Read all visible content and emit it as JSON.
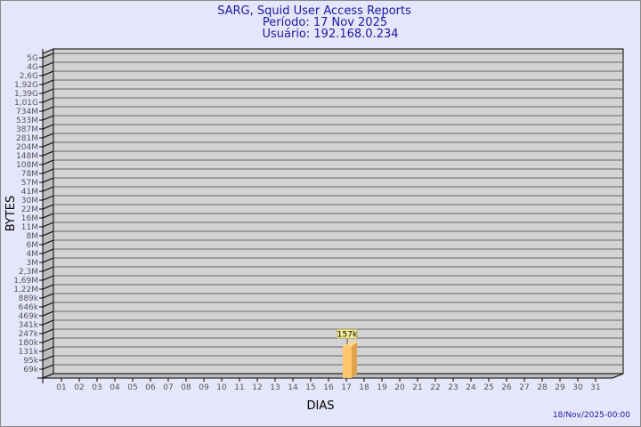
{
  "chart_data": {
    "type": "bar",
    "title": "SARG, Squid User Access Reports",
    "subtitle_period": "Período: 17 Nov 2025",
    "subtitle_user": "Usuário: 192.168.0.234",
    "xlabel": "DIAS",
    "ylabel": "BYTES",
    "y_scale": "log",
    "y_tick_labels": [
      "5G",
      "4G",
      "2,6G",
      "1,92G",
      "1,39G",
      "1,01G",
      "734M",
      "533M",
      "387M",
      "281M",
      "204M",
      "148M",
      "108M",
      "78M",
      "57M",
      "41M",
      "30M",
      "22M",
      "16M",
      "11M",
      "8M",
      "6M",
      "4M",
      "3M",
      "2,3M",
      "1,69M",
      "1,22M",
      "889k",
      "646k",
      "469k",
      "341k",
      "247k",
      "180k",
      "131k",
      "95k",
      "69k"
    ],
    "categories": [
      "01",
      "02",
      "03",
      "04",
      "05",
      "06",
      "07",
      "08",
      "09",
      "10",
      "11",
      "12",
      "13",
      "14",
      "15",
      "16",
      "17",
      "18",
      "19",
      "20",
      "21",
      "22",
      "23",
      "24",
      "25",
      "26",
      "27",
      "28",
      "29",
      "30",
      "31"
    ],
    "bars": [
      {
        "category": "17",
        "value": 157000,
        "label": "157k"
      }
    ],
    "grid": true,
    "colors": {
      "background": "#e6e6fa",
      "plot": "#d3d3d3",
      "bar_front": "#ffc66e",
      "bar_side": "#e0a24a",
      "title": "#1a1aa0"
    }
  },
  "footer": {
    "timestamp": "18/Nov/2025-00:00"
  }
}
